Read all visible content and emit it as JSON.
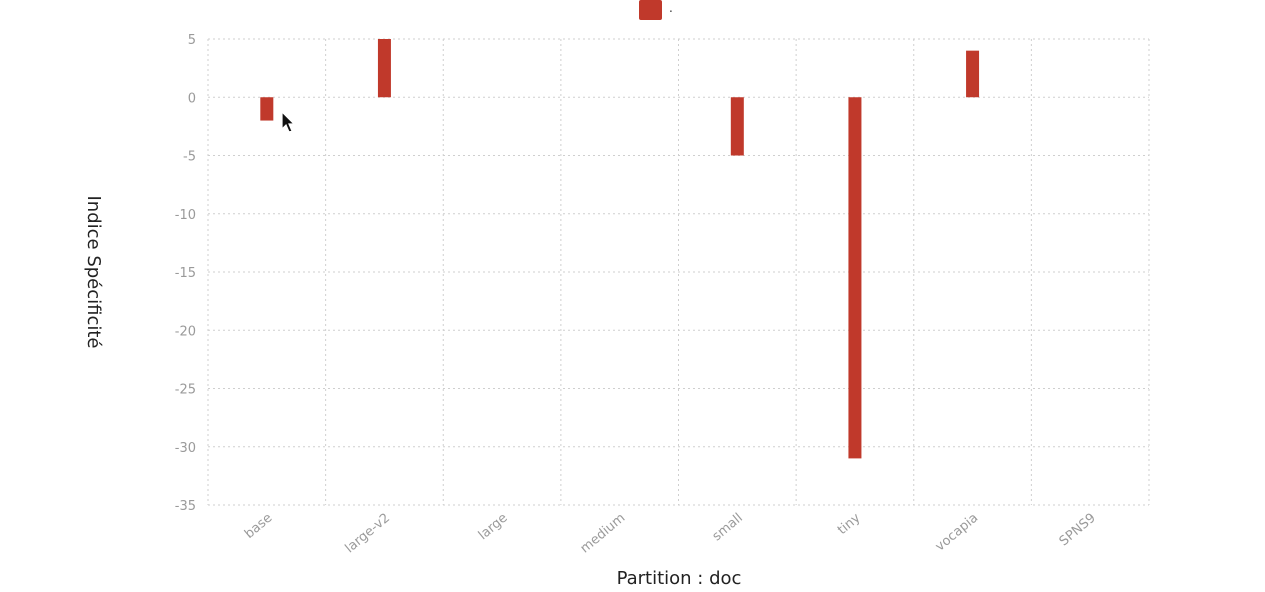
{
  "chart_data": {
    "type": "bar",
    "categories": [
      "base",
      "large-v2",
      "large",
      "medium",
      "small",
      "tiny",
      "vocapia",
      "SPNS9"
    ],
    "series": [
      {
        "name": ".",
        "values": [
          -2,
          5,
          0,
          0,
          -5,
          -31,
          4,
          0
        ],
        "color": "#c0392b"
      }
    ],
    "xlabel": "Partition : doc",
    "ylabel": "Indice Spécificité",
    "ylim": [
      -35,
      5
    ],
    "yticks": [
      5,
      0,
      -5,
      -10,
      -15,
      -20,
      -25,
      -30,
      -35
    ],
    "grid": true,
    "legend_position": "top-center"
  }
}
